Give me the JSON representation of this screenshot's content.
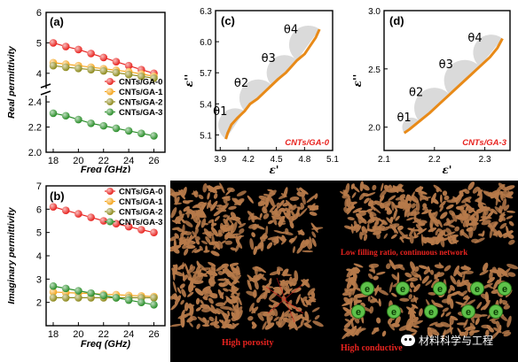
{
  "colors": {
    "ga0": "#e8231f",
    "ga1": "#f4a51c",
    "ga2": "#8e8a1c",
    "ga3": "#2a8e2a",
    "cole": "#e88a18",
    "caption_red": "#e8231f",
    "particle": "#b77a4a"
  },
  "chart_data": [
    {
      "id": "a",
      "type": "line",
      "panel_label": "(a)",
      "xlabel": "Freq (GHz)",
      "ylabel": "Real permittivity",
      "x": [
        18,
        19,
        20,
        21,
        22,
        23,
        24,
        25,
        26
      ],
      "xticks": [
        18,
        20,
        22,
        24,
        26
      ],
      "yticks_upper": [
        4,
        5,
        6
      ],
      "yticks_lower": [
        2.0,
        2.2,
        2.4
      ],
      "axis_break": true,
      "series": [
        {
          "name": "CNTs/GA-0",
          "values": [
            5.0,
            4.88,
            4.78,
            4.65,
            4.52,
            4.38,
            4.25,
            4.12,
            4.0
          ]
        },
        {
          "name": "CNTs/GA-1",
          "values": [
            4.35,
            4.3,
            4.25,
            4.2,
            4.15,
            4.1,
            4.05,
            3.98,
            3.9
          ]
        },
        {
          "name": "CNTs/GA-2",
          "values": [
            4.25,
            4.2,
            4.16,
            4.12,
            4.08,
            4.02,
            3.96,
            3.9,
            3.84
          ]
        },
        {
          "name": "CNTs/GA-3",
          "values": [
            2.31,
            2.29,
            2.26,
            2.23,
            2.21,
            2.19,
            2.17,
            2.15,
            2.13
          ]
        }
      ]
    },
    {
      "id": "b",
      "type": "line",
      "panel_label": "(b)",
      "xlabel": "Freq (GHz)",
      "ylabel": "Imaginary permittivity",
      "x": [
        18,
        19,
        20,
        21,
        22,
        23,
        24,
        25,
        26
      ],
      "xticks": [
        18,
        20,
        22,
        24,
        26
      ],
      "ylim": [
        1,
        7
      ],
      "yticks": [
        1,
        2,
        3,
        4,
        5,
        6,
        7
      ],
      "series": [
        {
          "name": "CNTs/GA-0",
          "values": [
            6.1,
            5.95,
            5.8,
            5.65,
            5.5,
            5.38,
            5.25,
            5.12,
            5.0
          ]
        },
        {
          "name": "CNTs/GA-1",
          "values": [
            2.45,
            2.42,
            2.4,
            2.38,
            2.35,
            2.33,
            2.3,
            2.28,
            2.25
          ]
        },
        {
          "name": "CNTs/GA-2",
          "values": [
            2.2,
            2.2,
            2.2,
            2.2,
            2.2,
            2.2,
            2.2,
            2.2,
            2.2
          ]
        },
        {
          "name": "CNTs/GA-3",
          "values": [
            2.7,
            2.6,
            2.5,
            2.4,
            2.3,
            2.2,
            2.1,
            2.0,
            1.9
          ]
        }
      ]
    },
    {
      "id": "c",
      "type": "line",
      "panel_label": "(c)",
      "xlabel": "ε'",
      "ylabel": "ε''",
      "xlim": [
        3.85,
        5.1
      ],
      "ylim": [
        4.95,
        6.3
      ],
      "xticks": [
        3.9,
        4.2,
        4.5,
        4.8,
        5.1
      ],
      "yticks": [
        5.1,
        5.4,
        5.7,
        6.0,
        6.3
      ],
      "semicircle_labels": [
        "θ1",
        "θ2",
        "θ3",
        "θ4"
      ],
      "annotation": "CNTs/GA-0",
      "series": [
        {
          "x": [
            3.96,
            3.98,
            4.02,
            4.08,
            4.16,
            4.22,
            4.3,
            4.38,
            4.45,
            4.52,
            4.6,
            4.66,
            4.72,
            4.8,
            4.86,
            4.92,
            4.96
          ],
          "values": [
            5.06,
            5.12,
            5.2,
            5.26,
            5.33,
            5.4,
            5.45,
            5.52,
            5.58,
            5.64,
            5.7,
            5.76,
            5.82,
            5.88,
            5.96,
            6.04,
            6.12
          ]
        }
      ]
    },
    {
      "id": "d",
      "type": "line",
      "panel_label": "(d)",
      "xlabel": "ε'",
      "ylabel": "ε''",
      "xlim": [
        2.1,
        2.35
      ],
      "ylim": [
        1.8,
        3.0
      ],
      "xticks": [
        2.1,
        2.2,
        2.3
      ],
      "yticks": [
        2.0,
        2.5,
        3.0
      ],
      "semicircle_labels": [
        "θ1",
        "θ2",
        "θ3",
        "θ4"
      ],
      "annotation": "CNTs/GA-3",
      "series": [
        {
          "x": [
            2.14,
            2.15,
            2.17,
            2.19,
            2.21,
            2.23,
            2.25,
            2.27,
            2.29,
            2.31,
            2.325,
            2.335
          ],
          "values": [
            1.95,
            1.98,
            2.05,
            2.12,
            2.2,
            2.28,
            2.36,
            2.44,
            2.52,
            2.6,
            2.68,
            2.76
          ]
        }
      ]
    }
  ],
  "schematic": {
    "caption_network": "Low filling ratio, continuous network",
    "caption_porosity": "High porosity",
    "caption_conductive": "High conductive"
  },
  "watermark": "材料科学与工程"
}
